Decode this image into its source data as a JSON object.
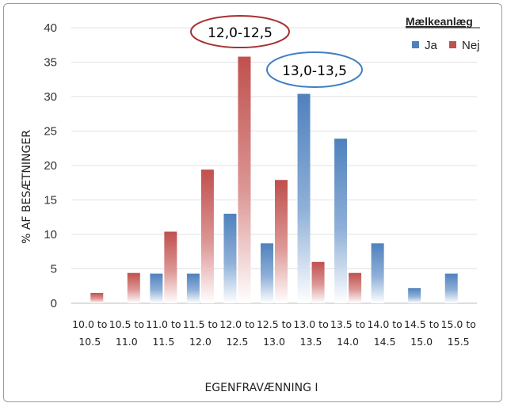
{
  "chart_data": {
    "type": "bar",
    "categories": [
      [
        "10.0 to",
        "10.5"
      ],
      [
        "10.5 to",
        "11.0"
      ],
      [
        "11.0 to",
        "11.5"
      ],
      [
        "11.5 to",
        "12.0"
      ],
      [
        "12.0 to",
        "12.5"
      ],
      [
        "12.5 to",
        "13.0"
      ],
      [
        "13.0 to",
        "13.5"
      ],
      [
        "13.5 to",
        "14.0"
      ],
      [
        "14.0 to",
        "14.5"
      ],
      [
        "14.5 to",
        "15.0"
      ],
      [
        "15.0 to",
        "15.5"
      ]
    ],
    "series": [
      {
        "name": "Ja",
        "color": "#4f81bd",
        "values": [
          0,
          0,
          4.3,
          4.3,
          13.0,
          8.7,
          30.4,
          23.9,
          8.7,
          2.2,
          4.3
        ]
      },
      {
        "name": "Nej",
        "color": "#c0504d",
        "values": [
          1.5,
          4.4,
          10.4,
          19.4,
          35.8,
          17.9,
          6.0,
          4.4,
          0,
          0,
          0
        ]
      }
    ],
    "ylim": [
      0,
      40
    ],
    "yticks": [
      0,
      5,
      10,
      15,
      20,
      25,
      30,
      35,
      40
    ],
    "ylabel": "% AF BESÆTNINGER",
    "xlabel": "EGENFRAVÆNNING I",
    "legend": {
      "title": "Mælkeanlæg",
      "position": "top-right"
    },
    "grid": true,
    "annotations": [
      {
        "text": "12,0-12,5",
        "color": "#a83232"
      },
      {
        "text": "13,0-13,5",
        "color": "#3f7fc4"
      }
    ]
  }
}
